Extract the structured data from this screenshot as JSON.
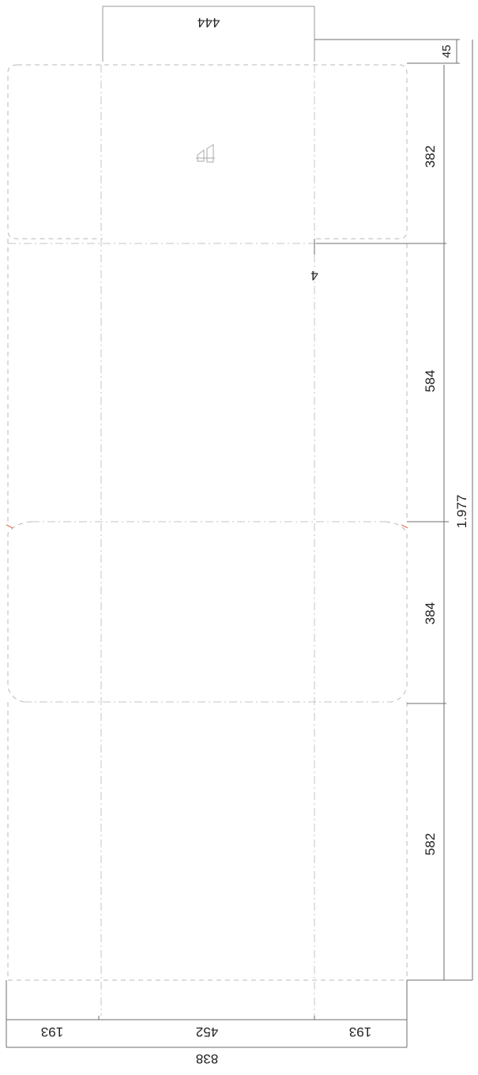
{
  "dimensions": {
    "top_tab_width": "444",
    "top_tab_height": "45",
    "panel_1": "382",
    "gap": "4",
    "panel_2": "584",
    "panel_3": "384",
    "panel_4": "582",
    "total_height": "1.977",
    "left_flap": "193",
    "center": "452",
    "right_flap": "193",
    "total_width": "838"
  },
  "icons": {
    "recycling_mark": "recycle-symbol-icon"
  }
}
